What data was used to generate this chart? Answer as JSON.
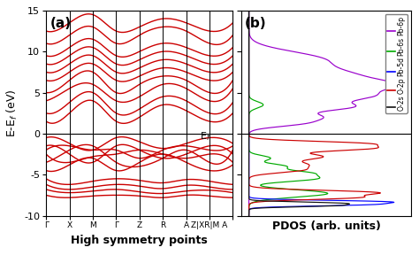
{
  "ylim": [
    -10,
    15
  ],
  "yticks": [
    -10,
    -5,
    0,
    5,
    10,
    15
  ],
  "band_color": "#cc0000",
  "band_linewidth": 1.0,
  "kpoint_labels": [
    "Γ",
    "X",
    "M",
    "Γ",
    "Z",
    "R",
    "A",
    "Z|XR|M A"
  ],
  "xlabel_band": "High symmetry points",
  "ylabel_band": "E-E$_f$ (eV)",
  "xlabel_pdos": "PDOS (arb. units)",
  "label_a": "(a)",
  "label_b": "(b)",
  "ef_label": "E$_f$",
  "legend_labels": [
    "Pb-6p",
    "Pb-6s",
    "Pb-5d",
    "O-2p",
    "O-2s"
  ],
  "legend_colors": [
    "#9900cc",
    "#00aa00",
    "#0000ff",
    "#cc0000",
    "#111111"
  ],
  "axis_fontsize": 9,
  "tick_fontsize": 8,
  "label_fontsize": 11
}
